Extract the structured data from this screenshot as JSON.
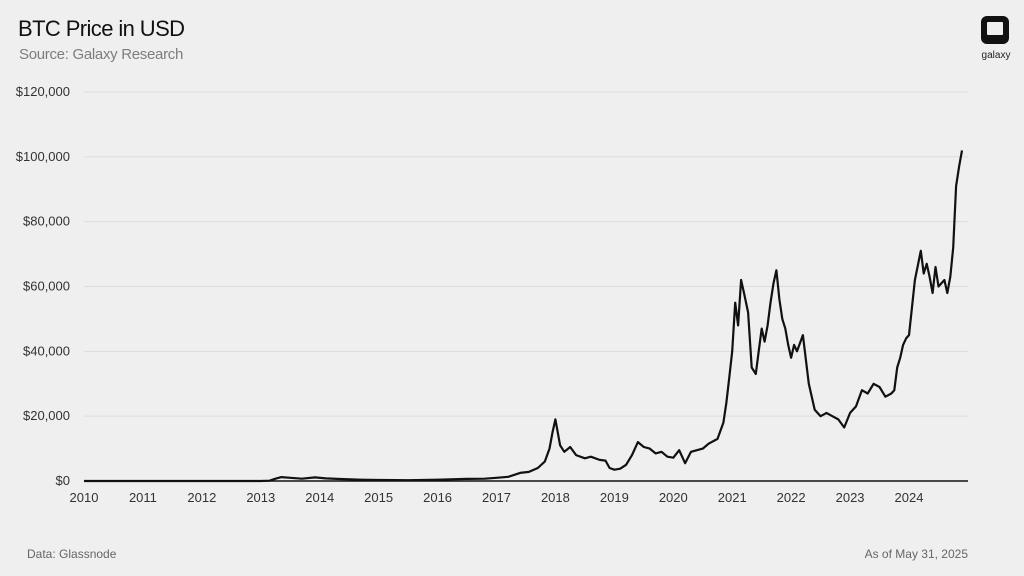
{
  "header": {
    "title": "BTC Price in USD",
    "subtitle": "Source: Galaxy Research"
  },
  "logo": {
    "text": "galaxy"
  },
  "footer": {
    "data_source": "Data: Glassnode",
    "as_of": "As of May 31, 2025"
  },
  "colors": {
    "background": "#efefef",
    "line": "#111111",
    "grid": "#dcdcdc"
  },
  "chart_data": {
    "type": "line",
    "title": "BTC Price in USD",
    "subtitle": "Source: Galaxy Research",
    "xlabel": "",
    "ylabel": "",
    "xlim": [
      2010,
      2025
    ],
    "ylim": [
      0,
      120000
    ],
    "y_ticks": [
      0,
      20000,
      40000,
      60000,
      80000,
      100000,
      120000
    ],
    "y_tick_labels": [
      "$0",
      "$20,000",
      "$40,000",
      "$60,000",
      "$80,000",
      "$100,000",
      "$120,000"
    ],
    "x_ticks": [
      2010,
      2011,
      2012,
      2013,
      2014,
      2015,
      2016,
      2017,
      2018,
      2019,
      2020,
      2021,
      2022,
      2023,
      2024
    ],
    "x_tick_labels": [
      "2010",
      "2011",
      "2012",
      "2013",
      "2014",
      "2015",
      "2016",
      "2017",
      "2018",
      "2019",
      "2020",
      "2021",
      "2022",
      "2023",
      "2024"
    ],
    "grid": true,
    "series": [
      {
        "x": [
          2010.0,
          2011.0,
          2011.5,
          2012.0,
          2012.5,
          2013.0,
          2013.15,
          2013.25,
          2013.35,
          2013.5,
          2013.7,
          2013.92,
          2014.1,
          2014.4,
          2014.7,
          2015.0,
          2015.5,
          2016.0,
          2016.5,
          2016.8,
          2017.0,
          2017.2,
          2017.4,
          2017.55,
          2017.7,
          2017.82,
          2017.9,
          2017.95,
          2018.0,
          2018.08,
          2018.15,
          2018.25,
          2018.35,
          2018.5,
          2018.6,
          2018.75,
          2018.85,
          2018.92,
          2019.0,
          2019.1,
          2019.2,
          2019.3,
          2019.4,
          2019.5,
          2019.6,
          2019.7,
          2019.8,
          2019.9,
          2020.0,
          2020.1,
          2020.2,
          2020.3,
          2020.4,
          2020.5,
          2020.6,
          2020.75,
          2020.85,
          2020.9,
          2020.95,
          2021.0,
          2021.05,
          2021.1,
          2021.15,
          2021.2,
          2021.27,
          2021.33,
          2021.4,
          2021.45,
          2021.5,
          2021.55,
          2021.6,
          2021.65,
          2021.7,
          2021.75,
          2021.8,
          2021.85,
          2021.9,
          2021.95,
          2022.0,
          2022.05,
          2022.1,
          2022.2,
          2022.3,
          2022.4,
          2022.5,
          2022.6,
          2022.7,
          2022.8,
          2022.9,
          2023.0,
          2023.1,
          2023.2,
          2023.3,
          2023.4,
          2023.5,
          2023.6,
          2023.7,
          2023.75,
          2023.8,
          2023.85,
          2023.9,
          2023.95,
          2024.0,
          2024.1,
          2024.2,
          2024.25,
          2024.3,
          2024.35,
          2024.4,
          2024.45,
          2024.5,
          2024.6,
          2024.65,
          2024.7,
          2024.75,
          2024.8,
          2024.85,
          2024.9
        ],
        "y": [
          0,
          1,
          10,
          5,
          8,
          13,
          100,
          700,
          1200,
          1000,
          700,
          1100,
          800,
          600,
          400,
          300,
          250,
          400,
          650,
          700,
          1000,
          1300,
          2500,
          2800,
          4000,
          6000,
          10000,
          15000,
          19000,
          11000,
          9000,
          10500,
          8000,
          7000,
          7500,
          6500,
          6300,
          4000,
          3500,
          3800,
          5000,
          8000,
          12000,
          10500,
          10000,
          8500,
          9000,
          7500,
          7200,
          9500,
          5500,
          9000,
          9500,
          10000,
          11500,
          13000,
          18000,
          24000,
          32000,
          40000,
          55000,
          48000,
          62000,
          58000,
          52000,
          35000,
          33000,
          40000,
          47000,
          43000,
          48000,
          55000,
          61000,
          65000,
          56000,
          50000,
          47000,
          42000,
          38000,
          42000,
          40000,
          45000,
          30000,
          22000,
          20000,
          21000,
          20000,
          19000,
          16500,
          21000,
          23000,
          28000,
          27000,
          30000,
          29000,
          26000,
          27000,
          28000,
          35000,
          38000,
          42000,
          44000,
          45000,
          62000,
          71000,
          64000,
          67000,
          63000,
          58000,
          66000,
          60000,
          62000,
          58000,
          63000,
          72000,
          91000,
          97000,
          102000
        ]
      }
    ]
  }
}
